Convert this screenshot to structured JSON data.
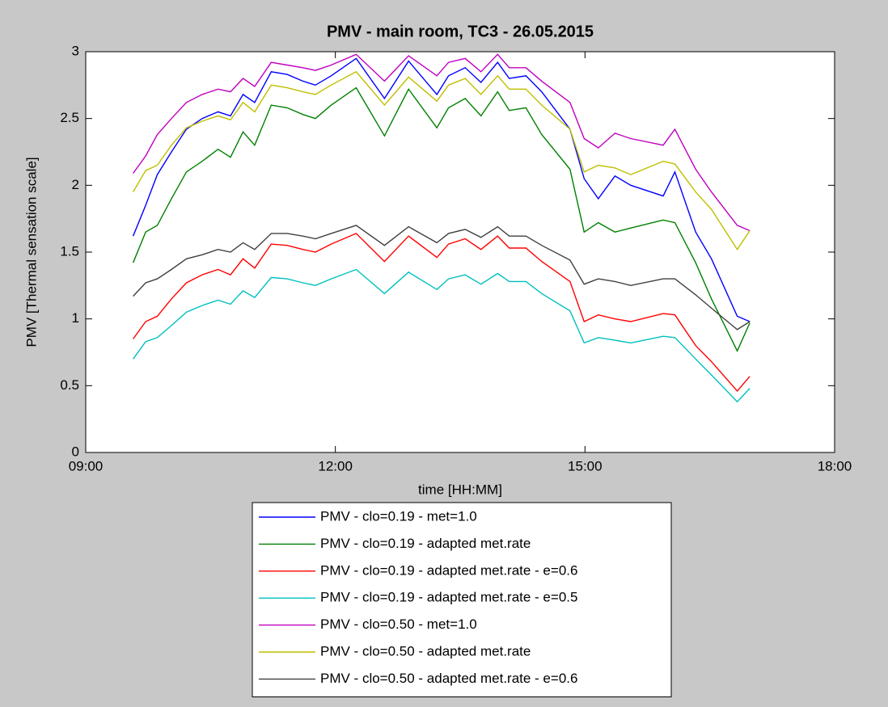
{
  "chart_data": {
    "type": "line",
    "title": "PMV - main room, TC3 - 26.05.2015",
    "x_label": "time [HH:MM]",
    "y_label": "PMV [Thermal sensation scale]",
    "x": [
      9.57,
      9.72,
      9.86,
      10.03,
      10.21,
      10.4,
      10.59,
      10.74,
      10.89,
      11.03,
      11.23,
      11.42,
      11.61,
      11.76,
      11.95,
      12.25,
      12.59,
      12.88,
      13.22,
      13.36,
      13.56,
      13.75,
      13.95,
      14.09,
      14.29,
      14.48,
      14.82,
      14.99,
      15.16,
      15.36,
      15.55,
      15.94,
      16.08,
      16.33,
      16.52,
      16.83,
      16.98
    ],
    "xlim": [
      9,
      18
    ],
    "xticks": [
      {
        "value": 9,
        "label": "09:00"
      },
      {
        "value": 12,
        "label": "12:00"
      },
      {
        "value": 15,
        "label": "15:00"
      },
      {
        "value": 18,
        "label": "18:00"
      }
    ],
    "ylim": [
      0,
      3
    ],
    "yticks": [
      0,
      0.5,
      1,
      1.5,
      2,
      2.5,
      3
    ],
    "grid": false,
    "legend": "below",
    "series": [
      {
        "name": "PMV - clo=0.19 - met=1.0",
        "color": "#0000ff",
        "values": [
          1.62,
          1.85,
          2.08,
          2.25,
          2.42,
          2.5,
          2.55,
          2.52,
          2.68,
          2.62,
          2.85,
          2.83,
          2.78,
          2.75,
          2.82,
          2.95,
          2.65,
          2.93,
          2.68,
          2.82,
          2.88,
          2.77,
          2.92,
          2.8,
          2.82,
          2.7,
          2.42,
          2.05,
          1.9,
          2.07,
          2.0,
          1.92,
          2.1,
          1.65,
          1.45,
          1.02,
          0.98
        ]
      },
      {
        "name": "PMV - clo=0.19 - adapted met.rate",
        "color": "#008000",
        "values": [
          1.42,
          1.65,
          1.7,
          1.9,
          2.1,
          2.18,
          2.27,
          2.21,
          2.4,
          2.3,
          2.6,
          2.58,
          2.53,
          2.5,
          2.6,
          2.73,
          2.37,
          2.72,
          2.43,
          2.58,
          2.65,
          2.52,
          2.7,
          2.56,
          2.58,
          2.38,
          2.12,
          1.65,
          1.72,
          1.65,
          1.68,
          1.74,
          1.72,
          1.42,
          1.15,
          0.76,
          0.97
        ]
      },
      {
        "name": "PMV - clo=0.19 - adapted met.rate - e=0.6",
        "color": "#ff0000",
        "values": [
          0.85,
          0.98,
          1.02,
          1.15,
          1.27,
          1.33,
          1.37,
          1.33,
          1.45,
          1.38,
          1.56,
          1.55,
          1.52,
          1.5,
          1.56,
          1.64,
          1.43,
          1.62,
          1.46,
          1.56,
          1.6,
          1.52,
          1.62,
          1.53,
          1.53,
          1.43,
          1.28,
          0.98,
          1.03,
          1.0,
          0.98,
          1.04,
          1.03,
          0.8,
          0.68,
          0.46,
          0.57
        ]
      },
      {
        "name": "PMV - clo=0.19 - adapted met.rate - e=0.5",
        "color": "#00bfbf",
        "values": [
          0.7,
          0.83,
          0.86,
          0.95,
          1.05,
          1.1,
          1.14,
          1.11,
          1.21,
          1.16,
          1.31,
          1.3,
          1.27,
          1.25,
          1.3,
          1.37,
          1.19,
          1.35,
          1.22,
          1.3,
          1.33,
          1.26,
          1.34,
          1.28,
          1.28,
          1.19,
          1.06,
          0.82,
          0.86,
          0.84,
          0.82,
          0.87,
          0.86,
          0.7,
          0.58,
          0.38,
          0.48
        ]
      },
      {
        "name": "PMV - clo=0.50 - met=1.0",
        "color": "#bf00bf",
        "values": [
          2.09,
          2.22,
          2.38,
          2.5,
          2.62,
          2.68,
          2.72,
          2.7,
          2.8,
          2.74,
          2.92,
          2.9,
          2.88,
          2.86,
          2.9,
          2.98,
          2.78,
          2.97,
          2.82,
          2.92,
          2.95,
          2.85,
          2.98,
          2.88,
          2.88,
          2.78,
          2.62,
          2.35,
          2.28,
          2.39,
          2.35,
          2.3,
          2.42,
          2.12,
          1.95,
          1.7,
          1.66
        ]
      },
      {
        "name": "PMV - clo=0.50 - adapted met.rate",
        "color": "#bfbf00",
        "values": [
          1.95,
          2.11,
          2.15,
          2.3,
          2.43,
          2.48,
          2.52,
          2.49,
          2.62,
          2.55,
          2.75,
          2.73,
          2.7,
          2.68,
          2.75,
          2.85,
          2.6,
          2.81,
          2.63,
          2.75,
          2.8,
          2.68,
          2.82,
          2.72,
          2.72,
          2.6,
          2.42,
          2.1,
          2.15,
          2.13,
          2.08,
          2.18,
          2.16,
          1.95,
          1.82,
          1.52,
          1.66
        ]
      },
      {
        "name": "PMV - clo=0.50 - adapted met.rate - e=0.6",
        "color": "#404040",
        "values": [
          1.17,
          1.27,
          1.3,
          1.37,
          1.45,
          1.48,
          1.52,
          1.5,
          1.57,
          1.52,
          1.64,
          1.64,
          1.62,
          1.6,
          1.64,
          1.7,
          1.55,
          1.69,
          1.57,
          1.64,
          1.67,
          1.61,
          1.69,
          1.62,
          1.62,
          1.55,
          1.44,
          1.26,
          1.3,
          1.28,
          1.25,
          1.3,
          1.3,
          1.18,
          1.08,
          0.92,
          0.98
        ]
      }
    ]
  }
}
